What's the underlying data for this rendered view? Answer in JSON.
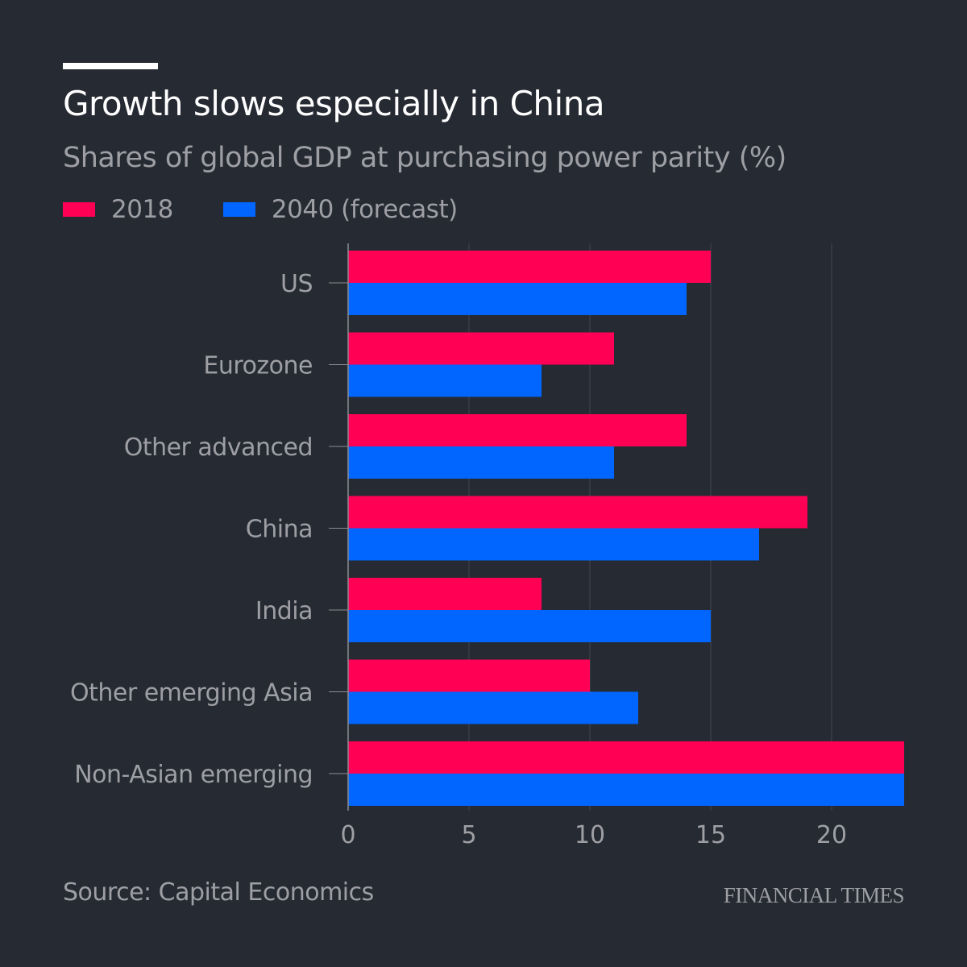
{
  "header": {
    "title": "Growth slows especially in China",
    "subtitle": "Shares of global GDP at purchasing power parity (%)"
  },
  "footer": {
    "source": "Source: Capital Economics",
    "brand": "FINANCIAL TIMES"
  },
  "chart_data": {
    "type": "bar",
    "orientation": "horizontal",
    "title": "Growth slows especially in China",
    "subtitle": "Shares of global GDP at purchasing power parity (%)",
    "xlabel": "",
    "ylabel": "",
    "categories": [
      "US",
      "Eurozone",
      "Other advanced",
      "China",
      "India",
      "Other emerging Asia",
      "Non-Asian emerging"
    ],
    "series": [
      {
        "name": "2018",
        "color": "#ff0055",
        "values": [
          15,
          11,
          14,
          19,
          8,
          10,
          23
        ]
      },
      {
        "name": "2040 (forecast)",
        "color": "#0066ff",
        "values": [
          14,
          8,
          11,
          17,
          15,
          12,
          23
        ]
      }
    ],
    "xlim": [
      0,
      23
    ],
    "xticks": [
      0,
      5,
      10,
      15,
      20
    ],
    "xtick_labels": [
      "0",
      "5",
      "10",
      "15",
      "20"
    ],
    "grid": true,
    "legend_position": "top-left",
    "source": "Source: Capital Economics"
  }
}
